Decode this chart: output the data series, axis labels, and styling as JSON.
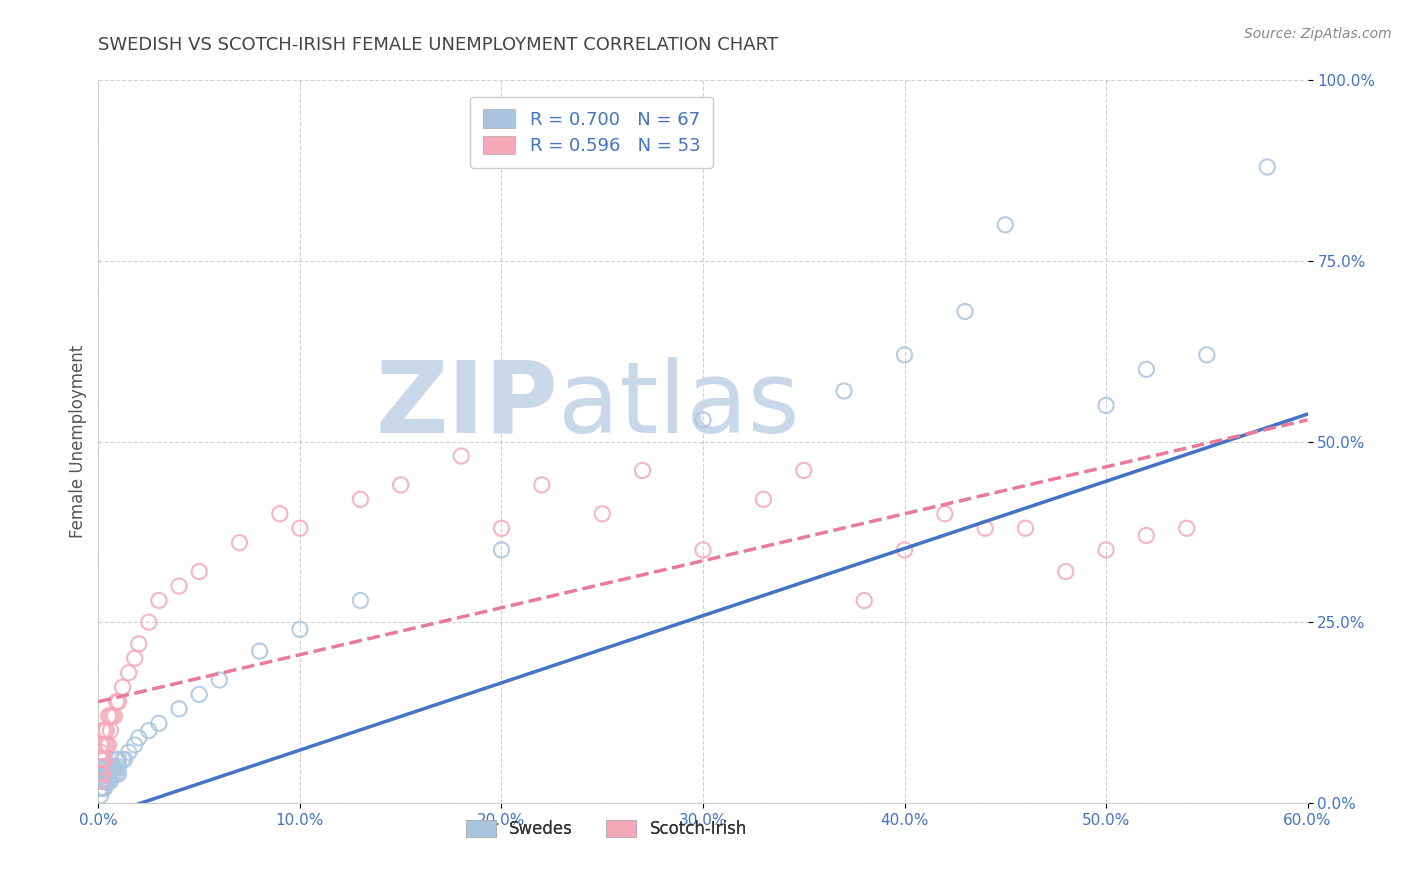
{
  "title": "SWEDISH VS SCOTCH-IRISH FEMALE UNEMPLOYMENT CORRELATION CHART",
  "source": "Source: ZipAtlas.com",
  "xlabel": "",
  "ylabel": "Female Unemployment",
  "xlim": [
    0.0,
    0.6
  ],
  "ylim": [
    0.0,
    1.0
  ],
  "xticks": [
    0.0,
    0.1,
    0.2,
    0.3,
    0.4,
    0.5,
    0.6
  ],
  "yticks": [
    0.0,
    0.25,
    0.5,
    0.75,
    1.0
  ],
  "xtick_labels": [
    "0.0%",
    "10.0%",
    "20.0%",
    "30.0%",
    "40.0%",
    "50.0%",
    "60.0%"
  ],
  "ytick_labels": [
    "0.0%",
    "25.0%",
    "50.0%",
    "75.0%",
    "100.0%"
  ],
  "background_color": "#ffffff",
  "grid_color": "#cccccc",
  "swedes_color": "#aac4e0",
  "scotch_color": "#f4a8b8",
  "swedes_R": 0.7,
  "swedes_N": 67,
  "scotch_R": 0.596,
  "scotch_N": 53,
  "legend_color": "#4472c4",
  "swedes_line_color": "#4472c4",
  "scotch_line_color": "#e87a9a",
  "swedes_line_intercept": -0.02,
  "swedes_line_slope": 0.93,
  "scotch_line_intercept": 0.14,
  "scotch_line_slope": 0.65,
  "watermark": "ZIPatlas",
  "watermark_color": "#d0dce8",
  "swedes_x": [
    0.001,
    0.001,
    0.001,
    0.001,
    0.001,
    0.001,
    0.001,
    0.001,
    0.001,
    0.001,
    0.002,
    0.002,
    0.002,
    0.002,
    0.002,
    0.002,
    0.002,
    0.002,
    0.003,
    0.003,
    0.003,
    0.003,
    0.003,
    0.003,
    0.004,
    0.004,
    0.004,
    0.004,
    0.005,
    0.005,
    0.005,
    0.005,
    0.006,
    0.006,
    0.006,
    0.007,
    0.007,
    0.008,
    0.008,
    0.009,
    0.009,
    0.01,
    0.01,
    0.01,
    0.012,
    0.013,
    0.015,
    0.018,
    0.02,
    0.025,
    0.03,
    0.04,
    0.05,
    0.06,
    0.08,
    0.1,
    0.13,
    0.2,
    0.3,
    0.37,
    0.4,
    0.43,
    0.45,
    0.5,
    0.52,
    0.55,
    0.58
  ],
  "swedes_y": [
    0.01,
    0.02,
    0.02,
    0.03,
    0.03,
    0.03,
    0.04,
    0.04,
    0.05,
    0.05,
    0.02,
    0.02,
    0.03,
    0.03,
    0.04,
    0.04,
    0.05,
    0.05,
    0.02,
    0.03,
    0.03,
    0.04,
    0.04,
    0.05,
    0.03,
    0.03,
    0.04,
    0.05,
    0.03,
    0.04,
    0.04,
    0.05,
    0.03,
    0.04,
    0.05,
    0.04,
    0.05,
    0.04,
    0.05,
    0.04,
    0.06,
    0.04,
    0.05,
    0.06,
    0.06,
    0.06,
    0.07,
    0.08,
    0.09,
    0.1,
    0.11,
    0.13,
    0.15,
    0.17,
    0.21,
    0.24,
    0.28,
    0.35,
    0.53,
    0.57,
    0.62,
    0.68,
    0.8,
    0.55,
    0.6,
    0.62,
    0.88
  ],
  "scotch_x": [
    0.001,
    0.001,
    0.001,
    0.001,
    0.001,
    0.001,
    0.002,
    0.002,
    0.002,
    0.002,
    0.003,
    0.003,
    0.003,
    0.004,
    0.004,
    0.005,
    0.005,
    0.006,
    0.006,
    0.007,
    0.008,
    0.009,
    0.01,
    0.012,
    0.015,
    0.018,
    0.02,
    0.025,
    0.03,
    0.04,
    0.05,
    0.07,
    0.09,
    0.1,
    0.13,
    0.15,
    0.18,
    0.2,
    0.22,
    0.25,
    0.27,
    0.3,
    0.33,
    0.35,
    0.38,
    0.4,
    0.42,
    0.44,
    0.46,
    0.48,
    0.5,
    0.52,
    0.54
  ],
  "scotch_y": [
    0.03,
    0.04,
    0.05,
    0.06,
    0.07,
    0.08,
    0.04,
    0.06,
    0.08,
    0.1,
    0.06,
    0.08,
    0.1,
    0.08,
    0.1,
    0.08,
    0.12,
    0.1,
    0.12,
    0.12,
    0.12,
    0.14,
    0.14,
    0.16,
    0.18,
    0.2,
    0.22,
    0.25,
    0.28,
    0.3,
    0.32,
    0.36,
    0.4,
    0.38,
    0.42,
    0.44,
    0.48,
    0.38,
    0.44,
    0.4,
    0.46,
    0.35,
    0.42,
    0.46,
    0.28,
    0.35,
    0.4,
    0.38,
    0.38,
    0.32,
    0.35,
    0.37,
    0.38
  ]
}
